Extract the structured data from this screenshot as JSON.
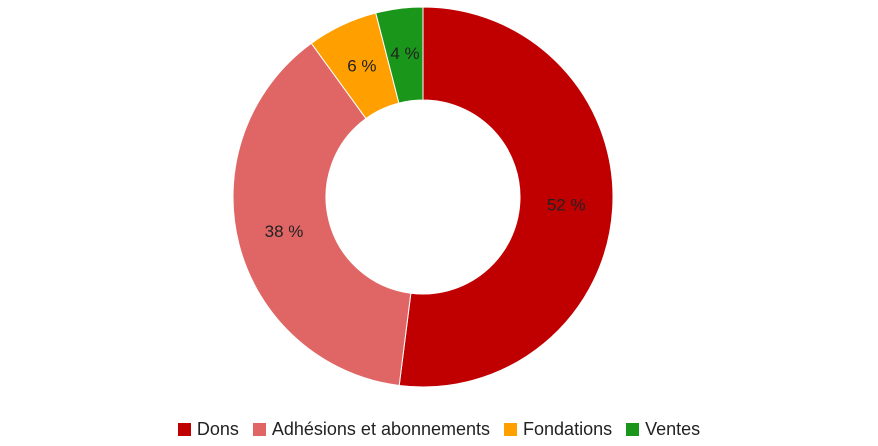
{
  "chart_data": {
    "type": "donut",
    "categories": [
      "Dons",
      "Adhésions et abonnements",
      "Fondations",
      "Ventes"
    ],
    "values": [
      52,
      38,
      6,
      4
    ],
    "value_labels": [
      "52 %",
      "38 %",
      "6 %",
      "4 %"
    ],
    "colors": [
      "#c00000",
      "#e06666",
      "#ff9f00",
      "#1a961a"
    ]
  }
}
